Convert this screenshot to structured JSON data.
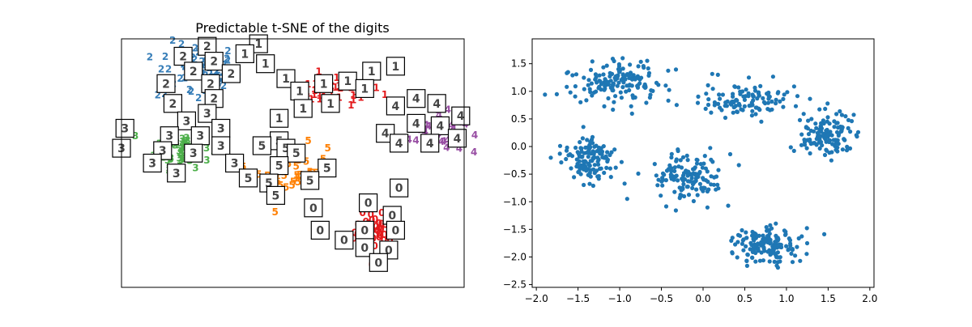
{
  "colors": {
    "digit_0": "#e41a1c",
    "digit_1": "#e41a1c",
    "digit_2": "#377eb8",
    "digit_3": "#4daf4a",
    "digit_4": "#984ea3",
    "digit_5": "#ff7f00",
    "scatter": "#1f77b4",
    "axes": "#000000"
  },
  "chart_data": [
    {
      "type": "scatter",
      "title": "Predictable t-SNE of the digits",
      "xlabel": "",
      "ylabel": "",
      "show_ticks": false,
      "grid": false,
      "xlim": [
        0,
        1
      ],
      "ylim": [
        0,
        1
      ],
      "clusters": [
        {
          "label": "0",
          "center": [
            0.74,
            0.21
          ],
          "spread": [
            0.03,
            0.05
          ],
          "count": 45
        },
        {
          "label": "1",
          "center": [
            0.62,
            0.78
          ],
          "spread": [
            0.07,
            0.03
          ],
          "count": 40
        },
        {
          "label": "2",
          "center": [
            0.22,
            0.85
          ],
          "spread": [
            0.06,
            0.06
          ],
          "count": 55
        },
        {
          "label": "3",
          "center": [
            0.18,
            0.55
          ],
          "spread": [
            0.04,
            0.04
          ],
          "count": 50
        },
        {
          "label": "4",
          "center": [
            0.92,
            0.61
          ],
          "spread": [
            0.04,
            0.04
          ],
          "count": 45
        },
        {
          "label": "5",
          "center": [
            0.5,
            0.46
          ],
          "spread": [
            0.05,
            0.05
          ],
          "count": 40
        }
      ],
      "thumbnails": [
        {
          "digit": "2",
          "x": 0.25,
          "y": 0.97
        },
        {
          "digit": "2",
          "x": 0.18,
          "y": 0.93
        },
        {
          "digit": "2",
          "x": 0.27,
          "y": 0.91
        },
        {
          "digit": "2",
          "x": 0.21,
          "y": 0.87
        },
        {
          "digit": "2",
          "x": 0.32,
          "y": 0.86
        },
        {
          "digit": "2",
          "x": 0.13,
          "y": 0.82
        },
        {
          "digit": "2",
          "x": 0.26,
          "y": 0.82
        },
        {
          "digit": "2",
          "x": 0.15,
          "y": 0.74
        },
        {
          "digit": "2",
          "x": 0.27,
          "y": 0.76
        },
        {
          "digit": "1",
          "x": 0.4,
          "y": 0.98
        },
        {
          "digit": "1",
          "x": 0.36,
          "y": 0.94
        },
        {
          "digit": "1",
          "x": 0.42,
          "y": 0.9
        },
        {
          "digit": "1",
          "x": 0.48,
          "y": 0.84
        },
        {
          "digit": "1",
          "x": 0.52,
          "y": 0.79
        },
        {
          "digit": "1",
          "x": 0.59,
          "y": 0.82
        },
        {
          "digit": "1",
          "x": 0.66,
          "y": 0.83
        },
        {
          "digit": "1",
          "x": 0.73,
          "y": 0.87
        },
        {
          "digit": "1",
          "x": 0.8,
          "y": 0.89
        },
        {
          "digit": "1",
          "x": 0.71,
          "y": 0.8
        },
        {
          "digit": "1",
          "x": 0.53,
          "y": 0.72
        },
        {
          "digit": "1",
          "x": 0.61,
          "y": 0.74
        },
        {
          "digit": "1",
          "x": 0.46,
          "y": 0.68
        },
        {
          "digit": "4",
          "x": 0.8,
          "y": 0.73
        },
        {
          "digit": "4",
          "x": 0.86,
          "y": 0.76
        },
        {
          "digit": "4",
          "x": 0.92,
          "y": 0.74
        },
        {
          "digit": "4",
          "x": 0.86,
          "y": 0.66
        },
        {
          "digit": "4",
          "x": 0.93,
          "y": 0.65
        },
        {
          "digit": "4",
          "x": 0.99,
          "y": 0.69
        },
        {
          "digit": "4",
          "x": 0.77,
          "y": 0.62
        },
        {
          "digit": "4",
          "x": 0.81,
          "y": 0.58
        },
        {
          "digit": "4",
          "x": 0.9,
          "y": 0.58
        },
        {
          "digit": "4",
          "x": 0.98,
          "y": 0.6
        },
        {
          "digit": "3",
          "x": 0.25,
          "y": 0.7
        },
        {
          "digit": "3",
          "x": 0.19,
          "y": 0.67
        },
        {
          "digit": "3",
          "x": 0.29,
          "y": 0.64
        },
        {
          "digit": "3",
          "x": 0.01,
          "y": 0.64
        },
        {
          "digit": "3",
          "x": 0.14,
          "y": 0.61
        },
        {
          "digit": "3",
          "x": 0.23,
          "y": 0.61
        },
        {
          "digit": "3",
          "x": 0.29,
          "y": 0.57
        },
        {
          "digit": "3",
          "x": 0.0,
          "y": 0.56
        },
        {
          "digit": "3",
          "x": 0.12,
          "y": 0.55
        },
        {
          "digit": "3",
          "x": 0.21,
          "y": 0.54
        },
        {
          "digit": "3",
          "x": 0.09,
          "y": 0.5
        },
        {
          "digit": "3",
          "x": 0.33,
          "y": 0.5
        },
        {
          "digit": "3",
          "x": 0.16,
          "y": 0.46
        },
        {
          "digit": "5",
          "x": 0.46,
          "y": 0.59
        },
        {
          "digit": "5",
          "x": 0.41,
          "y": 0.57
        },
        {
          "digit": "5",
          "x": 0.48,
          "y": 0.56
        },
        {
          "digit": "5",
          "x": 0.51,
          "y": 0.54
        },
        {
          "digit": "5",
          "x": 0.46,
          "y": 0.49
        },
        {
          "digit": "5",
          "x": 0.6,
          "y": 0.48
        },
        {
          "digit": "5",
          "x": 0.37,
          "y": 0.44
        },
        {
          "digit": "5",
          "x": 0.43,
          "y": 0.42
        },
        {
          "digit": "5",
          "x": 0.55,
          "y": 0.43
        },
        {
          "digit": "5",
          "x": 0.45,
          "y": 0.37
        },
        {
          "digit": "0",
          "x": 0.81,
          "y": 0.4
        },
        {
          "digit": "0",
          "x": 0.56,
          "y": 0.32
        },
        {
          "digit": "0",
          "x": 0.72,
          "y": 0.34
        },
        {
          "digit": "0",
          "x": 0.79,
          "y": 0.29
        },
        {
          "digit": "0",
          "x": 0.58,
          "y": 0.23
        },
        {
          "digit": "0",
          "x": 0.71,
          "y": 0.23
        },
        {
          "digit": "0",
          "x": 0.8,
          "y": 0.23
        },
        {
          "digit": "0",
          "x": 0.65,
          "y": 0.19
        },
        {
          "digit": "0",
          "x": 0.71,
          "y": 0.16
        },
        {
          "digit": "0",
          "x": 0.78,
          "y": 0.15
        },
        {
          "digit": "0",
          "x": 0.75,
          "y": 0.1
        }
      ]
    },
    {
      "type": "scatter",
      "title": "",
      "xlabel": "",
      "ylabel": "",
      "grid": false,
      "xlim": [
        -2.05,
        2.05
      ],
      "ylim": [
        -2.55,
        1.95
      ],
      "xticks": [
        -2.0,
        -1.5,
        -1.0,
        -0.5,
        0.0,
        0.5,
        1.0,
        1.5,
        2.0
      ],
      "xtick_labels": [
        "−2.0",
        "−1.5",
        "−1.0",
        "−0.5",
        "0.0",
        "0.5",
        "1.0",
        "1.5",
        "2.0"
      ],
      "yticks": [
        -2.5,
        -2.0,
        -1.5,
        -1.0,
        -0.5,
        0.0,
        0.5,
        1.0,
        1.5
      ],
      "ytick_labels": [
        "−2.5",
        "−2.0",
        "−1.5",
        "−1.0",
        "−0.5",
        "0.0",
        "0.5",
        "1.0",
        "1.5"
      ],
      "clusters": [
        {
          "center": [
            -1.05,
            1.15
          ],
          "spread": [
            0.28,
            0.2
          ],
          "count": 150
        },
        {
          "center": [
            0.55,
            0.85
          ],
          "spread": [
            0.3,
            0.17
          ],
          "count": 110
        },
        {
          "center": [
            1.5,
            0.2
          ],
          "spread": [
            0.18,
            0.2
          ],
          "count": 130
        },
        {
          "center": [
            -1.35,
            -0.25
          ],
          "spread": [
            0.16,
            0.22
          ],
          "count": 130
        },
        {
          "center": [
            -0.2,
            -0.55
          ],
          "spread": [
            0.22,
            0.22
          ],
          "count": 130
        },
        {
          "center": [
            0.75,
            -1.8
          ],
          "spread": [
            0.2,
            0.17
          ],
          "count": 150
        }
      ]
    }
  ]
}
